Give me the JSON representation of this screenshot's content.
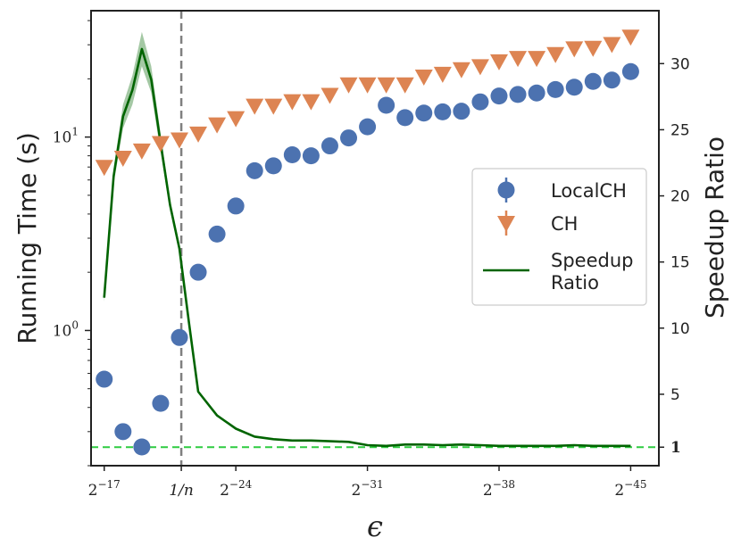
{
  "chart_data": {
    "type": "scatter",
    "xlabel": "ϵ",
    "ylabel_left": "Running Time (s)",
    "ylabel_right": "Speedup Ratio",
    "x": [
      17,
      18,
      19,
      20,
      21,
      22,
      23,
      24,
      25,
      26,
      27,
      28,
      29,
      30,
      31,
      32,
      33,
      34,
      35,
      36,
      37,
      38,
      39,
      40,
      41,
      42,
      43,
      44,
      45
    ],
    "x_ticks": [
      {
        "pos": 17,
        "base": "2",
        "exp": "−17"
      },
      {
        "pos": 21.1,
        "base": "1/n",
        "exp": ""
      },
      {
        "pos": 24,
        "base": "2",
        "exp": "−24"
      },
      {
        "pos": 31,
        "base": "2",
        "exp": "−31"
      },
      {
        "pos": 38,
        "base": "2",
        "exp": "−38"
      },
      {
        "pos": 45,
        "base": "2",
        "exp": "−45"
      }
    ],
    "xlim": [
      16.3,
      46.5
    ],
    "left_axis": {
      "scale": "log",
      "ylim": [
        0.2,
        45
      ],
      "major_ticks": [
        {
          "value": 1,
          "label": "10",
          "exp": "0"
        },
        {
          "value": 10,
          "label": "10",
          "exp": "1"
        }
      ]
    },
    "right_axis": {
      "ylim": [
        -0.4,
        34
      ],
      "ticks": [
        {
          "value": 1,
          "label": "1",
          "bold": true
        },
        {
          "value": 5,
          "label": "5"
        },
        {
          "value": 10,
          "label": "10"
        },
        {
          "value": 15,
          "label": "15"
        },
        {
          "value": 20,
          "label": "20"
        },
        {
          "value": 25,
          "label": "25"
        },
        {
          "value": 30,
          "label": "30"
        }
      ]
    },
    "series": [
      {
        "name": "LocalCH",
        "axis": "left",
        "marker": "circle",
        "color": "#4c72b0",
        "values": [
          0.56,
          0.3,
          0.25,
          0.42,
          0.92,
          2.0,
          3.15,
          4.4,
          6.7,
          7.1,
          8.1,
          8.0,
          9.0,
          9.9,
          11.3,
          14.6,
          12.6,
          13.3,
          13.5,
          13.6,
          15.2,
          16.3,
          16.6,
          16.9,
          17.6,
          18.1,
          19.4,
          19.7,
          21.8
        ]
      },
      {
        "name": "CH",
        "axis": "left",
        "marker": "triangle-down",
        "color": "#dd8452",
        "values": [
          7.0,
          7.8,
          8.5,
          9.3,
          9.7,
          10.4,
          11.6,
          12.5,
          14.5,
          14.5,
          15.3,
          15.3,
          16.5,
          18.7,
          18.7,
          18.7,
          18.7,
          20.5,
          21.2,
          22.4,
          23.2,
          24.6,
          25.6,
          25.6,
          26.8,
          28.7,
          28.9,
          30.2,
          33.0
        ]
      },
      {
        "name": "Speedup\nRatio",
        "axis": "right",
        "marker": "line",
        "color": "#006400",
        "band_color": "#5a9a5a",
        "x": [
          17,
          17.5,
          18,
          18.5,
          19,
          19.5,
          20,
          20.5,
          21,
          21.5,
          22,
          23,
          24,
          25,
          26,
          27,
          28,
          29,
          30,
          31,
          32,
          33,
          34,
          35,
          36,
          37,
          38,
          39,
          40,
          41,
          42,
          43,
          44,
          45
        ],
        "values": [
          12.3,
          21.5,
          26.0,
          28.0,
          31.1,
          28.8,
          24.0,
          19.3,
          16.0,
          10.5,
          5.2,
          3.4,
          2.4,
          1.8,
          1.6,
          1.5,
          1.5,
          1.45,
          1.4,
          1.15,
          1.1,
          1.2,
          1.2,
          1.15,
          1.2,
          1.15,
          1.1,
          1.1,
          1.1,
          1.1,
          1.15,
          1.1,
          1.1,
          1.1
        ],
        "band": [
          0.3,
          0.6,
          0.9,
          1.1,
          1.3,
          1.0,
          0.7,
          0.4,
          0.3,
          0.2,
          0.1,
          0.05,
          0.05,
          0.05,
          0.05,
          0.05,
          0.05,
          0.05,
          0.05,
          0.05,
          0.05,
          0.05,
          0.05,
          0.05,
          0.05,
          0.05,
          0.05,
          0.05,
          0.05,
          0.05,
          0.05,
          0.05,
          0.05,
          0.05
        ]
      }
    ],
    "reference_lines": [
      {
        "orientation": "vertical",
        "x": 21.1,
        "color": "#808080",
        "style": "dashed"
      },
      {
        "orientation": "horizontal",
        "axis": "right",
        "y": 1,
        "color": "#2ecc40",
        "style": "dashed"
      }
    ],
    "legend": {
      "placement": "center-right",
      "entries": [
        {
          "label": "LocalCH",
          "marker": "circle-errorbar",
          "color": "#4c72b0"
        },
        {
          "label": "CH",
          "marker": "triangle-errorbar",
          "color": "#dd8452"
        },
        {
          "label_lines": [
            "Speedup",
            "Ratio"
          ],
          "marker": "line",
          "color": "#006400"
        }
      ]
    },
    "grid": false
  }
}
